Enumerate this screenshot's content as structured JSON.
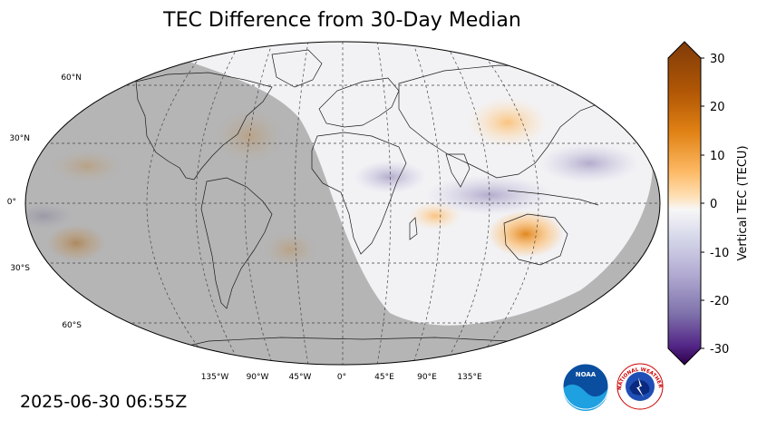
{
  "title": "TEC Difference from 30-Day Median",
  "timestamp": "2025-06-30 06:55Z",
  "lat_labels": [
    "60°N",
    "30°N",
    "0°",
    "30°S",
    "60°S"
  ],
  "lon_labels": [
    "135°W",
    "90°W",
    "45°W",
    "0°",
    "45°E",
    "90°E",
    "135°E"
  ],
  "colorbar": {
    "label": "Vertical TEC (TECU)",
    "ticks": [
      "30",
      "20",
      "10",
      "0",
      "-10",
      "-20",
      "-30"
    ],
    "min": -30,
    "max": 30,
    "colors": {
      "dark_brown": "#7f3b08",
      "orange": "#e08214",
      "light_orange": "#fdb863",
      "neutral": "#f7f7f7",
      "light_purple": "#b2abd2",
      "purple": "#8073ac",
      "dark_purple": "#2d004b"
    }
  },
  "logos": {
    "noaa": "NOAA",
    "nws": "NATIONAL WEATHER SERVICE"
  }
}
